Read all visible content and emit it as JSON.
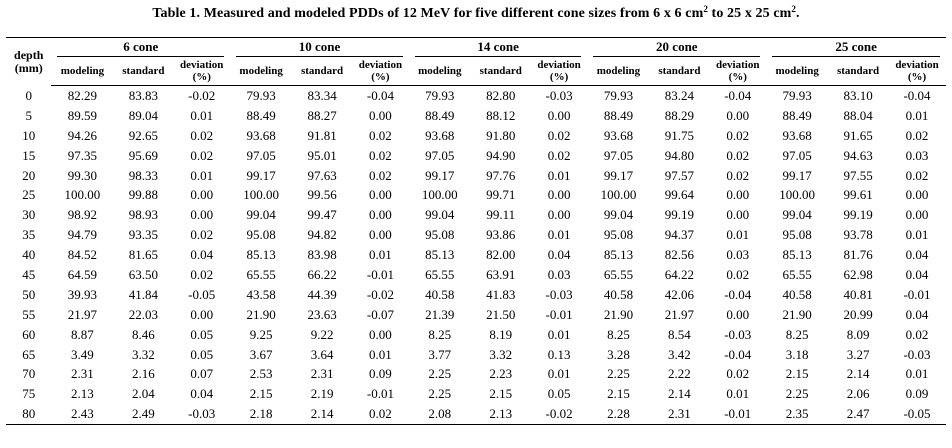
{
  "caption": {
    "prefix": "Table 1. Measured and modeled PDDs of 12 MeV for five different cone sizes from 6 x 6 cm",
    "sup1": "2",
    "middle": " to 25 x 25 cm",
    "sup2": "2",
    "suffix": "."
  },
  "header": {
    "depth_line1": "depth",
    "depth_line2": "(mm)",
    "cones": [
      "6 cone",
      "10 cone",
      "14 cone",
      "20 cone",
      "25 cone"
    ],
    "modeling": "modeling",
    "standard": "standard",
    "deviation_line1": "deviation",
    "deviation_line2": "(%)"
  },
  "rows": [
    {
      "depth": "0",
      "v": [
        "82.29",
        "83.83",
        "-0.02",
        "79.93",
        "83.34",
        "-0.04",
        "79.93",
        "82.80",
        "-0.03",
        "79.93",
        "83.24",
        "-0.04",
        "79.93",
        "83.10",
        "-0.04"
      ]
    },
    {
      "depth": "5",
      "v": [
        "89.59",
        "89.04",
        "0.01",
        "88.49",
        "88.27",
        "0.00",
        "88.49",
        "88.12",
        "0.00",
        "88.49",
        "88.29",
        "0.00",
        "88.49",
        "88.04",
        "0.01"
      ]
    },
    {
      "depth": "10",
      "v": [
        "94.26",
        "92.65",
        "0.02",
        "93.68",
        "91.81",
        "0.02",
        "93.68",
        "91.80",
        "0.02",
        "93.68",
        "91.75",
        "0.02",
        "93.68",
        "91.65",
        "0.02"
      ]
    },
    {
      "depth": "15",
      "v": [
        "97.35",
        "95.69",
        "0.02",
        "97.05",
        "95.01",
        "0.02",
        "97.05",
        "94.90",
        "0.02",
        "97.05",
        "94.80",
        "0.02",
        "97.05",
        "94.63",
        "0.03"
      ]
    },
    {
      "depth": "20",
      "v": [
        "99.30",
        "98.33",
        "0.01",
        "99.17",
        "97.63",
        "0.02",
        "99.17",
        "97.76",
        "0.01",
        "99.17",
        "97.57",
        "0.02",
        "99.17",
        "97.55",
        "0.02"
      ]
    },
    {
      "depth": "25",
      "v": [
        "100.00",
        "99.88",
        "0.00",
        "100.00",
        "99.56",
        "0.00",
        "100.00",
        "99.71",
        "0.00",
        "100.00",
        "99.64",
        "0.00",
        "100.00",
        "99.61",
        "0.00"
      ]
    },
    {
      "depth": "30",
      "v": [
        "98.92",
        "98.93",
        "0.00",
        "99.04",
        "99.47",
        "0.00",
        "99.04",
        "99.11",
        "0.00",
        "99.04",
        "99.19",
        "0.00",
        "99.04",
        "99.19",
        "0.00"
      ]
    },
    {
      "depth": "35",
      "v": [
        "94.79",
        "93.35",
        "0.02",
        "95.08",
        "94.82",
        "0.00",
        "95.08",
        "93.86",
        "0.01",
        "95.08",
        "94.37",
        "0.01",
        "95.08",
        "93.78",
        "0.01"
      ]
    },
    {
      "depth": "40",
      "v": [
        "84.52",
        "81.65",
        "0.04",
        "85.13",
        "83.98",
        "0.01",
        "85.13",
        "82.00",
        "0.04",
        "85.13",
        "82.56",
        "0.03",
        "85.13",
        "81.76",
        "0.04"
      ]
    },
    {
      "depth": "45",
      "v": [
        "64.59",
        "63.50",
        "0.02",
        "65.55",
        "66.22",
        "-0.01",
        "65.55",
        "63.91",
        "0.03",
        "65.55",
        "64.22",
        "0.02",
        "65.55",
        "62.98",
        "0.04"
      ]
    },
    {
      "depth": "50",
      "v": [
        "39.93",
        "41.84",
        "-0.05",
        "43.58",
        "44.39",
        "-0.02",
        "40.58",
        "41.83",
        "-0.03",
        "40.58",
        "42.06",
        "-0.04",
        "40.58",
        "40.81",
        "-0.01"
      ]
    },
    {
      "depth": "55",
      "v": [
        "21.97",
        "22.03",
        "0.00",
        "21.90",
        "23.63",
        "-0.07",
        "21.39",
        "21.50",
        "-0.01",
        "21.90",
        "21.97",
        "0.00",
        "21.90",
        "20.99",
        "0.04"
      ]
    },
    {
      "depth": "60",
      "v": [
        "8.87",
        "8.46",
        "0.05",
        "9.25",
        "9.22",
        "0.00",
        "8.25",
        "8.19",
        "0.01",
        "8.25",
        "8.54",
        "-0.03",
        "8.25",
        "8.09",
        "0.02"
      ]
    },
    {
      "depth": "65",
      "v": [
        "3.49",
        "3.32",
        "0.05",
        "3.67",
        "3.64",
        "0.01",
        "3.77",
        "3.32",
        "0.13",
        "3.28",
        "3.42",
        "-0.04",
        "3.18",
        "3.27",
        "-0.03"
      ]
    },
    {
      "depth": "70",
      "v": [
        "2.31",
        "2.16",
        "0.07",
        "2.53",
        "2.31",
        "0.09",
        "2.25",
        "2.23",
        "0.01",
        "2.25",
        "2.22",
        "0.02",
        "2.15",
        "2.14",
        "0.01"
      ]
    },
    {
      "depth": "75",
      "v": [
        "2.13",
        "2.04",
        "0.04",
        "2.15",
        "2.19",
        "-0.01",
        "2.25",
        "2.15",
        "0.05",
        "2.15",
        "2.14",
        "0.01",
        "2.25",
        "2.06",
        "0.09"
      ]
    },
    {
      "depth": "80",
      "v": [
        "2.43",
        "2.49",
        "-0.03",
        "2.18",
        "2.14",
        "0.02",
        "2.08",
        "2.13",
        "-0.02",
        "2.28",
        "2.31",
        "-0.01",
        "2.35",
        "2.47",
        "-0.05"
      ]
    }
  ]
}
